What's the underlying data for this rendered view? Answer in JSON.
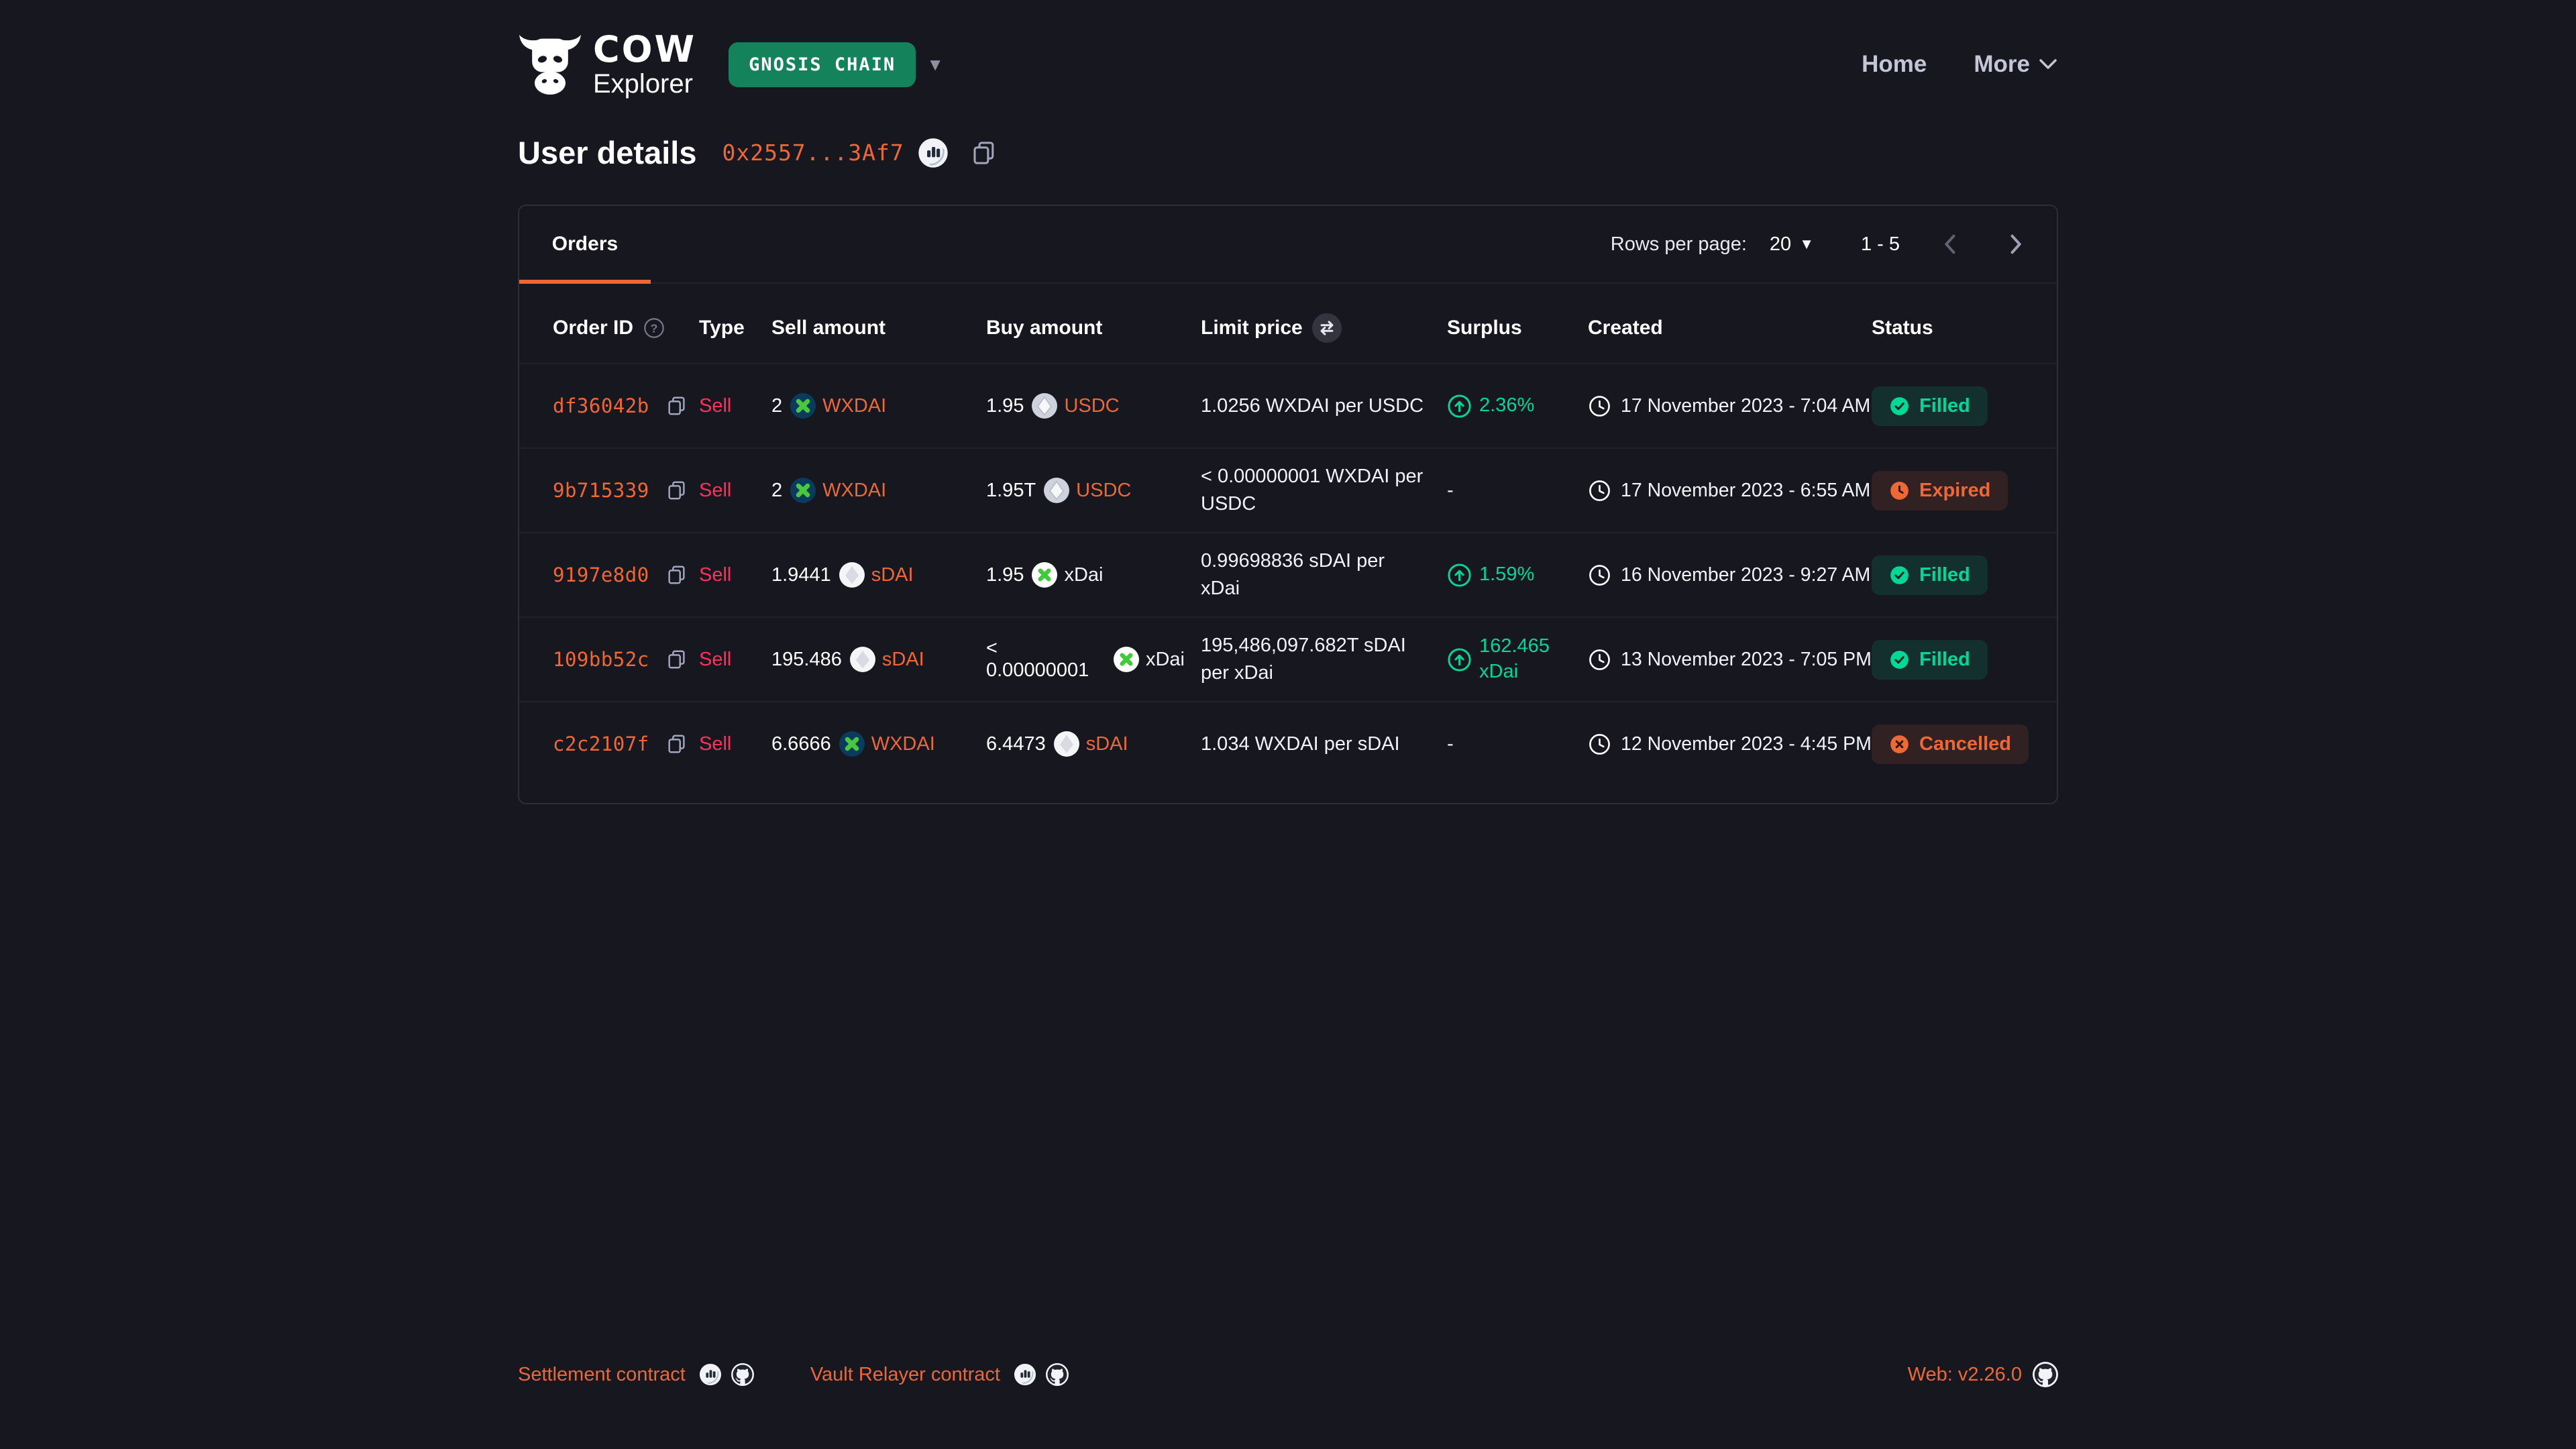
{
  "header": {
    "brand": {
      "title": "COW",
      "subtitle": "Explorer"
    },
    "network_badge": {
      "label": "GNOSIS CHAIN"
    },
    "nav": {
      "home": "Home",
      "more": "More"
    }
  },
  "page": {
    "title": "User details",
    "address": "0x2557...3Af7"
  },
  "panel": {
    "tab_label": "Orders",
    "rows_per_page_label": "Rows per page:",
    "rows_per_page_value": "20",
    "page_range": "1 - 5",
    "columns": {
      "order_id": "Order ID",
      "type": "Type",
      "sell_amount": "Sell amount",
      "buy_amount": "Buy amount",
      "limit_price": "Limit price",
      "surplus": "Surplus",
      "created": "Created",
      "status": "Status"
    }
  },
  "orders": [
    {
      "id": "df36042b",
      "type": "Sell",
      "sell": {
        "amount": "2",
        "token": "WXDAI",
        "icon": "wxdai",
        "link": true
      },
      "buy": {
        "amount": "1.95",
        "token": "USDC",
        "icon": "usdc",
        "link": true
      },
      "limit_price": "1.0256 WXDAI per USDC",
      "surplus": "2.36%",
      "created": "17 November 2023 - 7:04 AM",
      "status": "Filled"
    },
    {
      "id": "9b715339",
      "type": "Sell",
      "sell": {
        "amount": "2",
        "token": "WXDAI",
        "icon": "wxdai",
        "link": true
      },
      "buy": {
        "amount": "1.95T",
        "token": "USDC",
        "icon": "usdc",
        "link": true
      },
      "limit_price": "< 0.00000001 WXDAI per USDC",
      "surplus": null,
      "created": "17 November 2023 - 6:55 AM",
      "status": "Expired"
    },
    {
      "id": "9197e8d0",
      "type": "Sell",
      "sell": {
        "amount": "1.9441",
        "token": "sDAI",
        "icon": "sdai",
        "link": true
      },
      "buy": {
        "amount": "1.95",
        "token": "xDai",
        "icon": "xdai",
        "link": false
      },
      "limit_price": "0.99698836 sDAI per xDai",
      "surplus": "1.59%",
      "created": "16 November 2023 - 9:27 AM",
      "status": "Filled"
    },
    {
      "id": "109bb52c",
      "type": "Sell",
      "sell": {
        "amount": "195.486",
        "token": "sDAI",
        "icon": "sdai",
        "link": true
      },
      "buy": {
        "amount": "< 0.00000001",
        "token": "xDai",
        "icon": "xdai",
        "link": false
      },
      "limit_price": "195,486,097.682T sDAI per xDai",
      "surplus": "162.465 xDai",
      "created": "13 November 2023 - 7:05 PM",
      "status": "Filled"
    },
    {
      "id": "c2c2107f",
      "type": "Sell",
      "sell": {
        "amount": "6.6666",
        "token": "WXDAI",
        "icon": "wxdai",
        "link": true
      },
      "buy": {
        "amount": "6.4473",
        "token": "sDAI",
        "icon": "sdai",
        "link": true
      },
      "limit_price": "1.034 WXDAI per sDAI",
      "surplus": null,
      "created": "12 November 2023 - 4:45 PM",
      "status": "Cancelled"
    }
  ],
  "footer": {
    "settlement_label": "Settlement contract",
    "vault_relayer_label": "Vault Relayer contract",
    "web_version": "Web: v2.26.0"
  },
  "colors": {
    "background": "#16171F",
    "card_border": "#2D2E38",
    "accent_orange": "#ED6834",
    "sell_red": "#FF305B",
    "success_green": "#00D897",
    "network_badge_green": "#14835B"
  }
}
